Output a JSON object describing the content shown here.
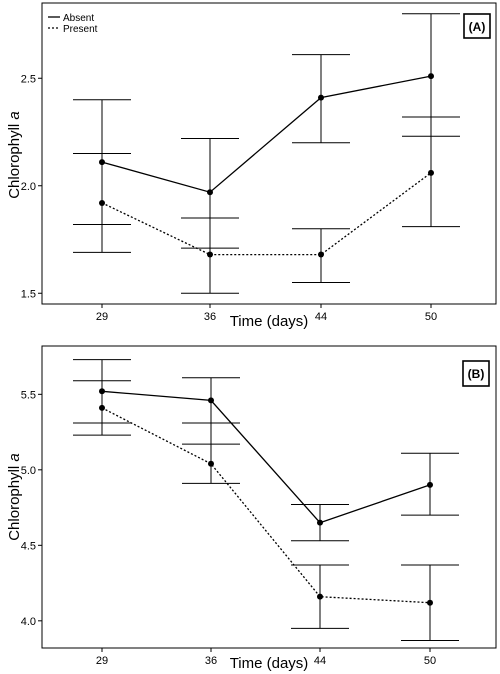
{
  "chart_data": [
    {
      "type": "line",
      "badge": "A",
      "x": [
        29,
        36,
        44,
        50
      ],
      "xlabel": "Time (days)",
      "ylabel": "Chlorophyll",
      "ylabel_var": "a",
      "yticks": [
        1.5,
        2.0,
        2.5
      ],
      "ytick_labels": [
        "1.5",
        "2.0",
        "2.5"
      ],
      "ylim": [
        1.45,
        2.85
      ],
      "legend": {
        "placement": "top-left"
      },
      "series": [
        {
          "name": "Absent",
          "style": "solid",
          "values": [
            2.11,
            1.97,
            2.41,
            2.51
          ],
          "err_low": [
            1.82,
            1.71,
            2.2,
            2.23
          ],
          "err_high": [
            2.4,
            2.22,
            2.61,
            2.8
          ]
        },
        {
          "name": "Present",
          "style": "dotted",
          "values": [
            1.92,
            1.68,
            1.68,
            2.06
          ],
          "err_low": [
            1.69,
            1.5,
            1.55,
            1.81
          ],
          "err_high": [
            2.15,
            1.85,
            1.8,
            2.32
          ]
        }
      ]
    },
    {
      "type": "line",
      "badge": "B",
      "x": [
        29,
        36,
        44,
        50
      ],
      "xlabel": "Time (days)",
      "ylabel": "Chlorophyll",
      "ylabel_var": "a",
      "yticks": [
        4.0,
        4.5,
        5.0,
        5.5
      ],
      "ytick_labels": [
        "4.0",
        "4.5",
        "5.0",
        "5.5"
      ],
      "ylim": [
        3.82,
        5.82
      ],
      "series": [
        {
          "name": "Absent",
          "style": "solid",
          "values": [
            5.52,
            5.46,
            4.65,
            4.9
          ],
          "err_low": [
            5.31,
            5.17,
            4.53,
            4.7
          ],
          "err_high": [
            5.73,
            5.61,
            4.77,
            5.11
          ]
        },
        {
          "name": "Present",
          "style": "dotted",
          "values": [
            5.41,
            5.04,
            4.16,
            4.12
          ],
          "err_low": [
            5.23,
            4.91,
            3.95,
            3.87
          ],
          "err_high": [
            5.59,
            5.31,
            4.37,
            4.37
          ]
        }
      ]
    }
  ]
}
